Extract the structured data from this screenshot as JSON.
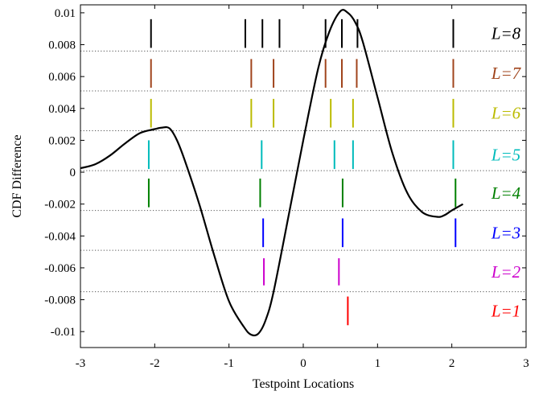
{
  "chart_data": {
    "type": "line",
    "xlabel": "Testpoint Locations",
    "ylabel": "CDF Difference",
    "xlim": [
      -3,
      3
    ],
    "ylim": [
      -0.011,
      0.0105
    ],
    "xticks": [
      -3,
      -2,
      -1,
      0,
      1,
      2,
      3
    ],
    "xtick_labels": [
      "-3",
      "-2",
      "-1",
      "0",
      "1",
      "2",
      "3"
    ],
    "yticks": [
      -0.01,
      -0.008,
      -0.006,
      -0.004,
      -0.002,
      0,
      0.002,
      0.004,
      0.006,
      0.008,
      0.01
    ],
    "ytick_labels": [
      "-0.01",
      "-0.008",
      "-0.006",
      "-0.004",
      "-0.002",
      "0",
      "0.002",
      "0.004",
      "0.006",
      "0.008",
      "0.01"
    ],
    "grid": "dotted horizontal separators between bands",
    "curve": {
      "color": "#000000",
      "x": [
        -3.0,
        -2.8,
        -2.6,
        -2.4,
        -2.2,
        -2.0,
        -1.9,
        -1.8,
        -1.7,
        -1.6,
        -1.4,
        -1.2,
        -1.0,
        -0.8,
        -0.7,
        -0.6,
        -0.5,
        -0.4,
        -0.2,
        0.0,
        0.2,
        0.35,
        0.5,
        0.6,
        0.7,
        0.8,
        1.0,
        1.2,
        1.4,
        1.6,
        1.8,
        1.9,
        2.0,
        2.15
      ],
      "y": [
        0.00025,
        0.0005,
        0.00105,
        0.0018,
        0.00245,
        0.0027,
        0.0028,
        0.00275,
        0.002,
        0.0008,
        -0.002,
        -0.0052,
        -0.0081,
        -0.0097,
        -0.0102,
        -0.0101,
        -0.0092,
        -0.0075,
        -0.0028,
        0.002,
        0.0065,
        0.0088,
        0.0101,
        0.01,
        0.0094,
        0.0082,
        0.0047,
        0.0012,
        -0.0013,
        -0.0025,
        -0.0028,
        -0.0027,
        -0.0024,
        -0.002
      ]
    },
    "series": [
      {
        "name": "L=1",
        "label": "L=1",
        "color": "#ff0000",
        "locations": [
          0.6
        ],
        "y_range": [
          -0.0096,
          -0.0078
        ]
      },
      {
        "name": "L=2",
        "label": "L=2",
        "color": "#cc00cc",
        "locations": [
          -0.53,
          0.48
        ],
        "y_range": [
          -0.0071,
          -0.0054
        ]
      },
      {
        "name": "L=3",
        "label": "L=3",
        "color": "#0000ff",
        "locations": [
          -0.54,
          0.53,
          2.05
        ],
        "y_range": [
          -0.0047,
          -0.0029
        ]
      },
      {
        "name": "L=4",
        "label": "L=4",
        "color": "#008000",
        "locations": [
          -2.08,
          -0.58,
          0.53,
          2.05
        ],
        "y_range": [
          -0.0022,
          -0.0004
        ]
      },
      {
        "name": "L=5",
        "label": "L=5",
        "color": "#00bbbb",
        "locations": [
          -2.08,
          -0.56,
          0.42,
          0.67,
          2.02
        ],
        "y_range": [
          0.0002,
          0.002
        ]
      },
      {
        "name": "L=6",
        "label": "L=6",
        "color": "#bbbb00",
        "locations": [
          -2.05,
          -0.7,
          -0.4,
          0.37,
          0.67,
          2.02
        ],
        "y_range": [
          0.0028,
          0.0046
        ]
      },
      {
        "name": "L=7",
        "label": "L=7",
        "color": "#a0441c",
        "locations": [
          -2.05,
          -0.7,
          -0.4,
          0.3,
          0.52,
          0.72,
          2.02
        ],
        "y_range": [
          0.0053,
          0.0071
        ]
      },
      {
        "name": "L=8",
        "label": "L=8",
        "color": "#000000",
        "locations": [
          -2.05,
          -0.78,
          -0.55,
          -0.32,
          0.3,
          0.52,
          0.73,
          2.02
        ],
        "y_range": [
          0.0078,
          0.0096
        ]
      }
    ],
    "band_separators_y": [
      -0.0075,
      -0.0049,
      -0.0024,
      0.0001,
      0.0026,
      0.0051,
      0.0076
    ]
  }
}
